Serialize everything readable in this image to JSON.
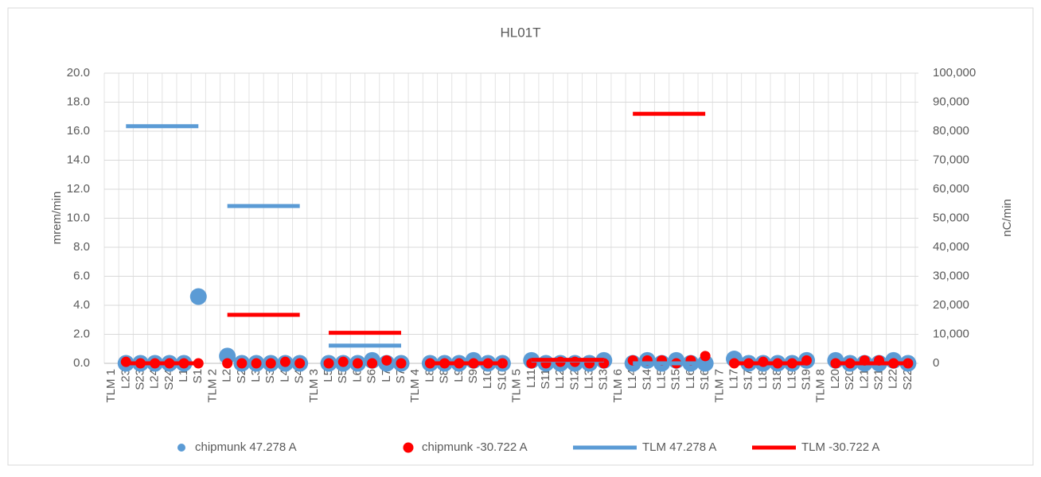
{
  "chart_data": {
    "type": "combo",
    "title": "HL01T",
    "y_label": "mrem/min",
    "y2_label": "nC/min",
    "categories": [
      "TLM 1",
      "L23",
      "S23",
      "L24",
      "S24",
      "L1",
      "S1",
      "TLM 2",
      "L2",
      "S2",
      "L3",
      "S3",
      "L4",
      "S4",
      "TLM 3",
      "L5",
      "S5",
      "L6",
      "S6",
      "L7",
      "S7",
      "TLM 4",
      "L8",
      "S8",
      "L9",
      "S9",
      "L10",
      "S10",
      "TLM 5",
      "L11",
      "S11",
      "L12",
      "S12",
      "L13",
      "S13",
      "TLM 6",
      "L14",
      "S14",
      "L15",
      "S15",
      "L16",
      "S16",
      "TLM 7",
      "L17",
      "S17",
      "L18",
      "S18",
      "L19",
      "S19",
      "TLM 8",
      "L20",
      "S20",
      "L21",
      "S21",
      "L22",
      "S22"
    ],
    "ylim": [
      0,
      20
    ],
    "yticks": [
      {
        "value": 0,
        "label": "0.0"
      },
      {
        "value": 2,
        "label": "2.0"
      },
      {
        "value": 4,
        "label": "4.0"
      },
      {
        "value": 6,
        "label": "6.0"
      },
      {
        "value": 8,
        "label": "8.0"
      },
      {
        "value": 10,
        "label": "10.0"
      },
      {
        "value": 12,
        "label": "12.0"
      },
      {
        "value": 14,
        "label": "14.0"
      },
      {
        "value": 16,
        "label": "16.0"
      },
      {
        "value": 18,
        "label": "18.0"
      },
      {
        "value": 20,
        "label": "20.0"
      }
    ],
    "y2lim": [
      0,
      100000
    ],
    "y2ticks": [
      0,
      {
        "value": 10000,
        "label": "10,000"
      },
      {
        "value": 20000,
        "label": "20,000"
      },
      {
        "value": 30000,
        "label": "30,000"
      },
      {
        "value": 40000,
        "label": "40,000"
      },
      {
        "value": 50000,
        "label": "50,000"
      },
      {
        "value": 60000,
        "label": "60,000"
      },
      {
        "value": 70000,
        "label": "70,000"
      },
      {
        "value": 80000,
        "label": "80,000"
      },
      {
        "value": 90000,
        "label": "90,000"
      },
      {
        "value": 100000,
        "label": "100,000"
      }
    ],
    "grid": true,
    "legend": "bottom",
    "series": [
      {
        "name": "chipmunk 47.278 A",
        "type": "scatter",
        "color": "#5b9bd5",
        "values": [
          null,
          0,
          0,
          0,
          0,
          0,
          4.6,
          null,
          0.5,
          0,
          0,
          0,
          0,
          0,
          null,
          0,
          0,
          0,
          0.2,
          0,
          0,
          null,
          0,
          0,
          0,
          0.2,
          0,
          0,
          null,
          0.2,
          0,
          0,
          0,
          0,
          0.2,
          null,
          0,
          0.2,
          0,
          0.2,
          0,
          0,
          null,
          0.3,
          0,
          0,
          0,
          0,
          0.2,
          null,
          0.2,
          0,
          0,
          0,
          0.2,
          0
        ]
      },
      {
        "name": "chipmunk -30.722 A",
        "type": "scatter",
        "color": "#ff0000",
        "values": [
          null,
          0.1,
          0,
          0,
          0,
          0,
          0,
          null,
          0,
          0,
          0,
          0,
          0.1,
          0,
          null,
          0,
          0.1,
          0,
          0,
          0.2,
          0,
          null,
          0,
          0,
          0,
          0,
          0,
          0,
          null,
          0,
          0,
          0.1,
          0.1,
          0,
          0,
          null,
          0.2,
          0.2,
          0.2,
          0,
          0.2,
          0.5,
          null,
          0,
          0,
          0.1,
          0,
          0,
          0.2,
          null,
          0,
          0,
          0.2,
          0.2,
          0,
          0
        ]
      },
      {
        "name": "TLM 47.278 A",
        "type": "line",
        "axis": "y2",
        "color": "#5b9bd5",
        "values": [
          null,
          81700,
          81700,
          81700,
          81700,
          81700,
          81700,
          null,
          54200,
          54200,
          54200,
          54200,
          54200,
          54200,
          null,
          6100,
          6100,
          6100,
          6100,
          6100,
          6100,
          null,
          0,
          0,
          0,
          0,
          0,
          0,
          null,
          1000,
          1000,
          1000,
          1000,
          1000,
          1000,
          null,
          0,
          0,
          0,
          0,
          0,
          0,
          null,
          0,
          0,
          0,
          0,
          0,
          0,
          null,
          0,
          0,
          0,
          0,
          0,
          0
        ]
      },
      {
        "name": "TLM -30.722 A",
        "type": "line",
        "axis": "y2",
        "color": "#ff0000",
        "values": [
          null,
          0,
          0,
          0,
          0,
          0,
          0,
          null,
          16700,
          16700,
          16700,
          16700,
          16700,
          16700,
          null,
          10500,
          10500,
          10500,
          10500,
          10500,
          10500,
          null,
          0,
          0,
          0,
          0,
          0,
          0,
          null,
          1200,
          1200,
          1200,
          1200,
          1200,
          1200,
          null,
          86000,
          86000,
          86000,
          86000,
          86000,
          86000,
          null,
          0,
          0,
          0,
          0,
          0,
          0,
          null,
          0,
          0,
          0,
          0,
          0,
          0
        ]
      }
    ]
  }
}
